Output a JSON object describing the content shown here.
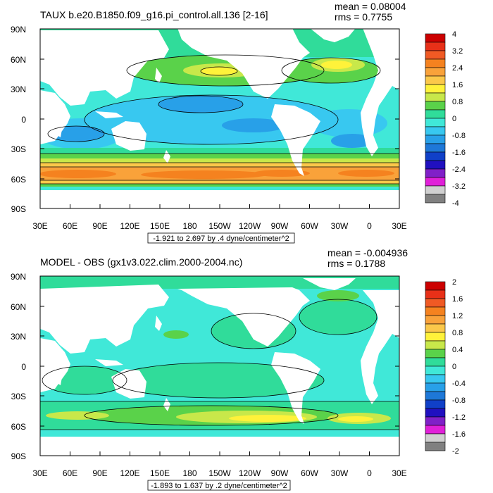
{
  "panels": [
    {
      "id": "top",
      "title": "TAUX b.e20.B1850.f09_g16.pi_control.all.136 [2-16]",
      "mean_label": "mean = 0.08004",
      "rms_label": "rms = 0.7755",
      "range_label": "-1.921 to 2.697 by .4 dyne/centimeter^2",
      "colorbar_labels": [
        "4",
        "3.2",
        "2.4",
        "1.6",
        "0.8",
        "0",
        "-0.8",
        "-1.6",
        "-2.4",
        "-3.2",
        "-4"
      ]
    },
    {
      "id": "bottom",
      "title": "MODEL - OBS (gx1v3.022.clim.2000-2004.nc)",
      "mean_label": "mean = -0.004936",
      "rms_label": "rms = 0.1788",
      "range_label": "-1.893 to 1.637 by .2 dyne/centimeter^2",
      "colorbar_labels": [
        "2",
        "1.6",
        "1.2",
        "0.8",
        "0.4",
        "0",
        "-0.4",
        "-0.8",
        "-1.2",
        "-1.6",
        "-2"
      ]
    }
  ],
  "lat_labels": [
    "90N",
    "60N",
    "30N",
    "0",
    "30S",
    "60S",
    "90S"
  ],
  "lon_labels": [
    "30E",
    "60E",
    "90E",
    "120E",
    "150E",
    "180",
    "150W",
    "120W",
    "90W",
    "60W",
    "30W",
    "0",
    "30E"
  ],
  "colorbar_colors": [
    "#cc0000",
    "#e83018",
    "#f05a24",
    "#f5821f",
    "#f9a23a",
    "#fbc84a",
    "#fff23a",
    "#c8e84a",
    "#5ad24a",
    "#30dc9a",
    "#40e8d8",
    "#38c8f0",
    "#28a0e8",
    "#1e78d8",
    "#1040c8",
    "#2010c0",
    "#8020c8",
    "#e020d8",
    "#d0d0d0",
    "#808080"
  ],
  "field_colors": {
    "ocean_base": "#40e8d8",
    "neg_weak": "#38c8f0",
    "neg_mid": "#28a0e8",
    "pos_weak": "#30dc9a",
    "pos_mid": "#5ad24a",
    "pos_high": "#c8e84a",
    "yellow": "#fff23a",
    "orange_light": "#fbc84a",
    "orange": "#f9a23a",
    "orange_dark": "#f5821f",
    "land": "#ffffff"
  }
}
